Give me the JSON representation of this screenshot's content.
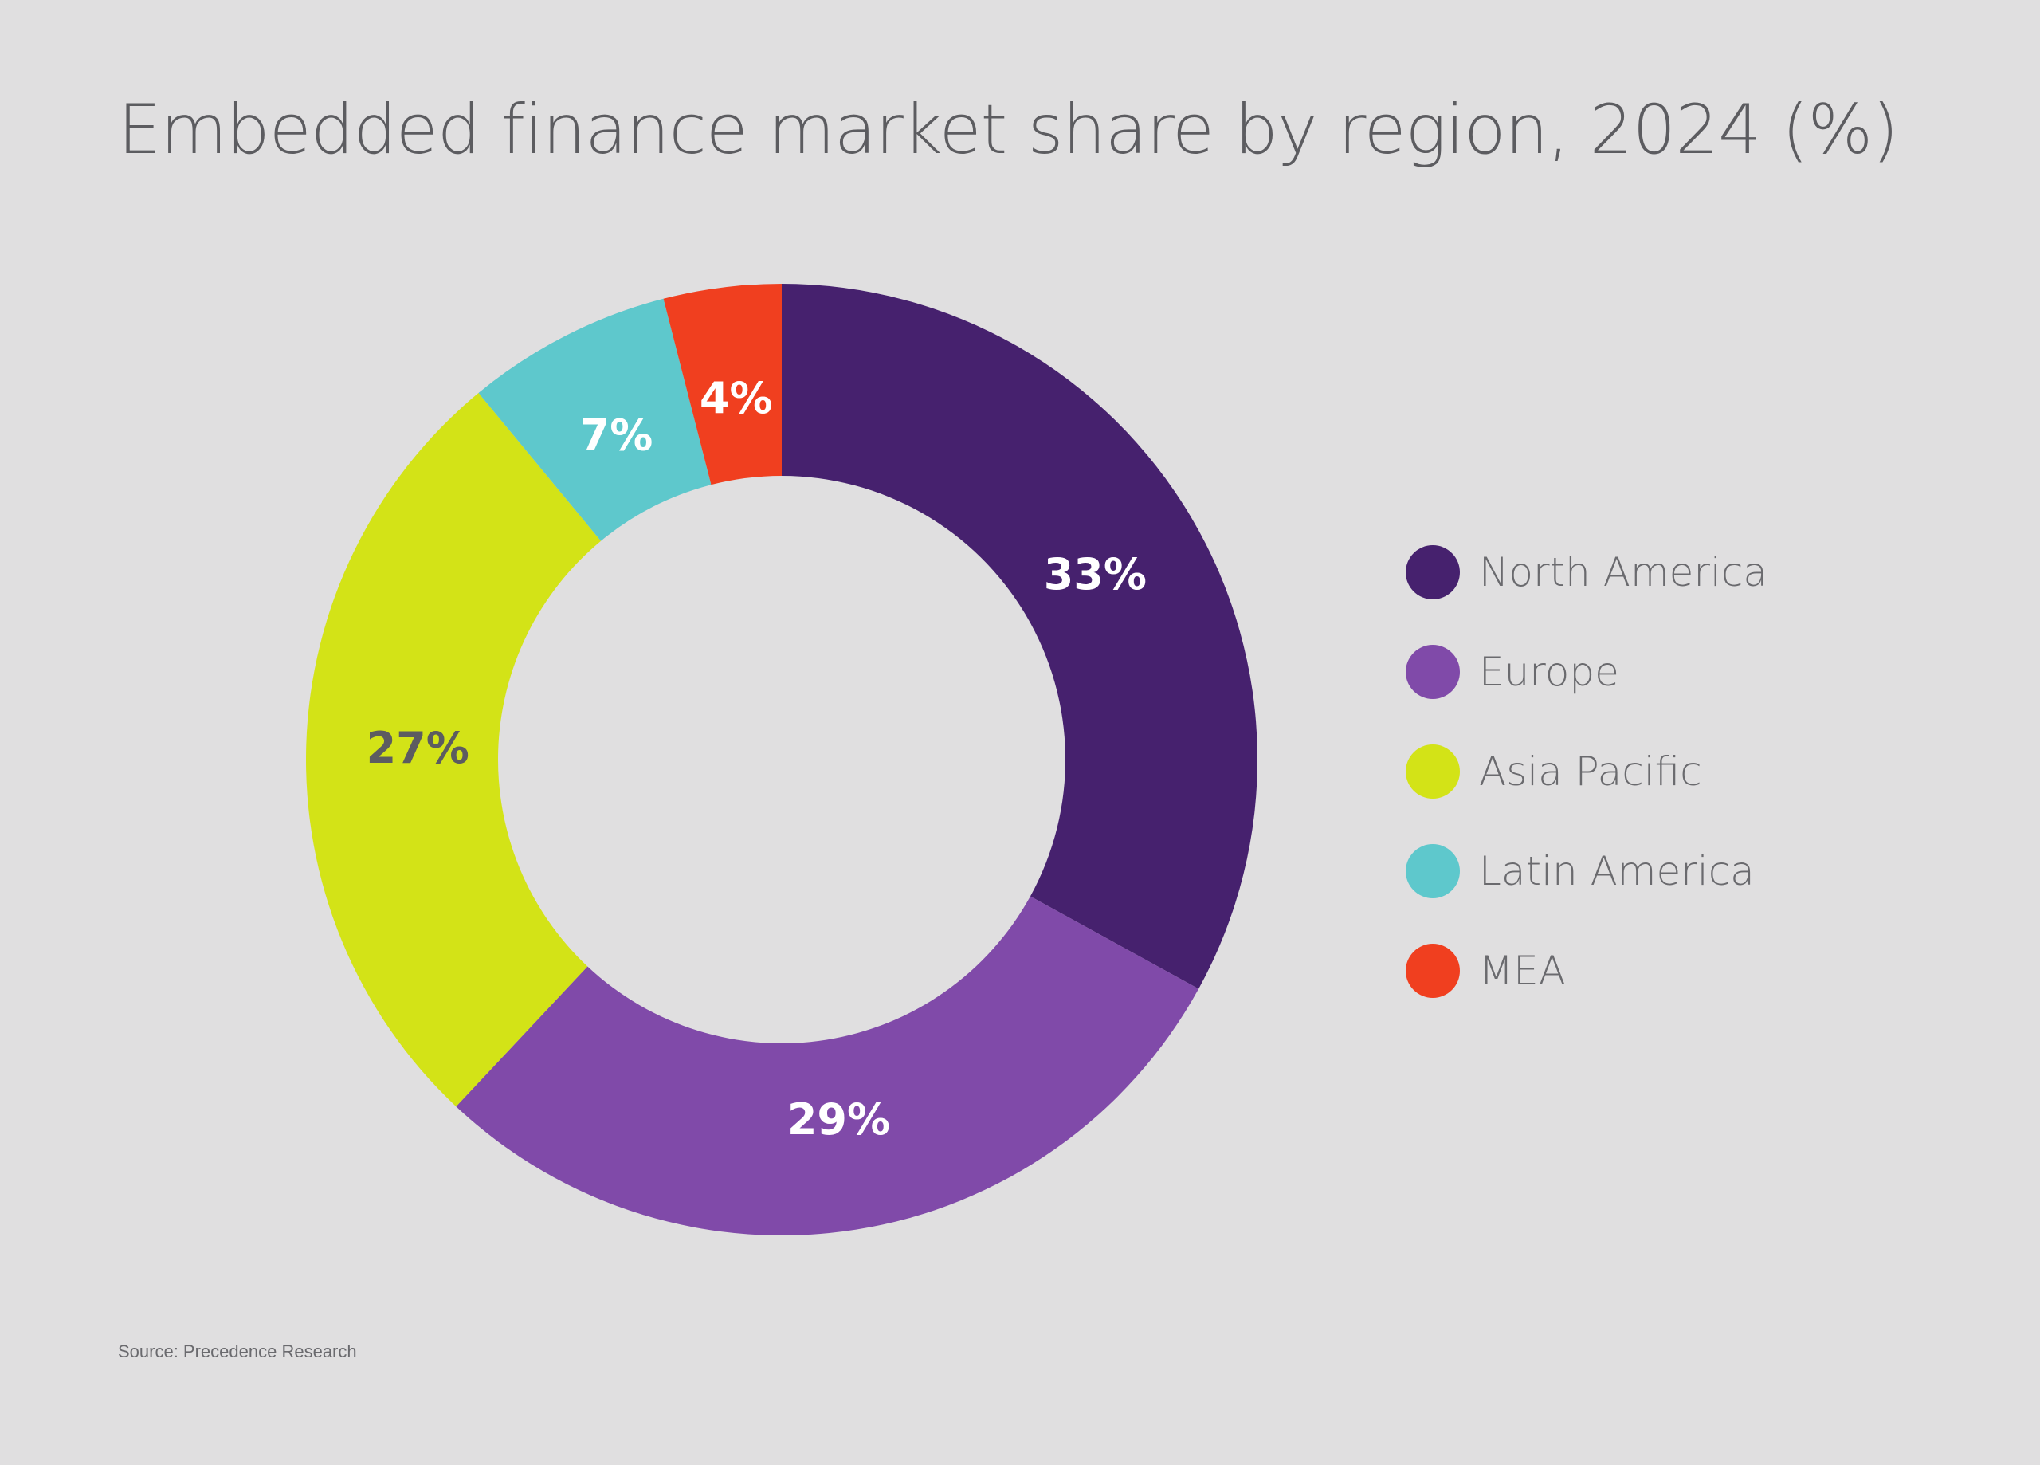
{
  "chart_data": {
    "type": "pie",
    "variant": "donut",
    "title": "Embedded finance market share by region, 2024 (%)",
    "categories": [
      "North America",
      "Europe",
      "Asia Pacific",
      "Latin America",
      "MEA"
    ],
    "values": [
      33,
      29,
      27,
      7,
      4
    ],
    "labels": [
      "33%",
      "29%",
      "27%",
      "7%",
      "4%"
    ],
    "colors": [
      "#46216e",
      "#804aa9",
      "#d3e317",
      "#5ec8cc",
      "#f03f1f"
    ],
    "label_colors": [
      "#ffffff",
      "#ffffff",
      "#5c5c60",
      "#ffffff",
      "#ffffff"
    ],
    "start": "12 o'clock",
    "direction": "clockwise",
    "legend_position": "right",
    "source": "Source: Precedence Research"
  }
}
